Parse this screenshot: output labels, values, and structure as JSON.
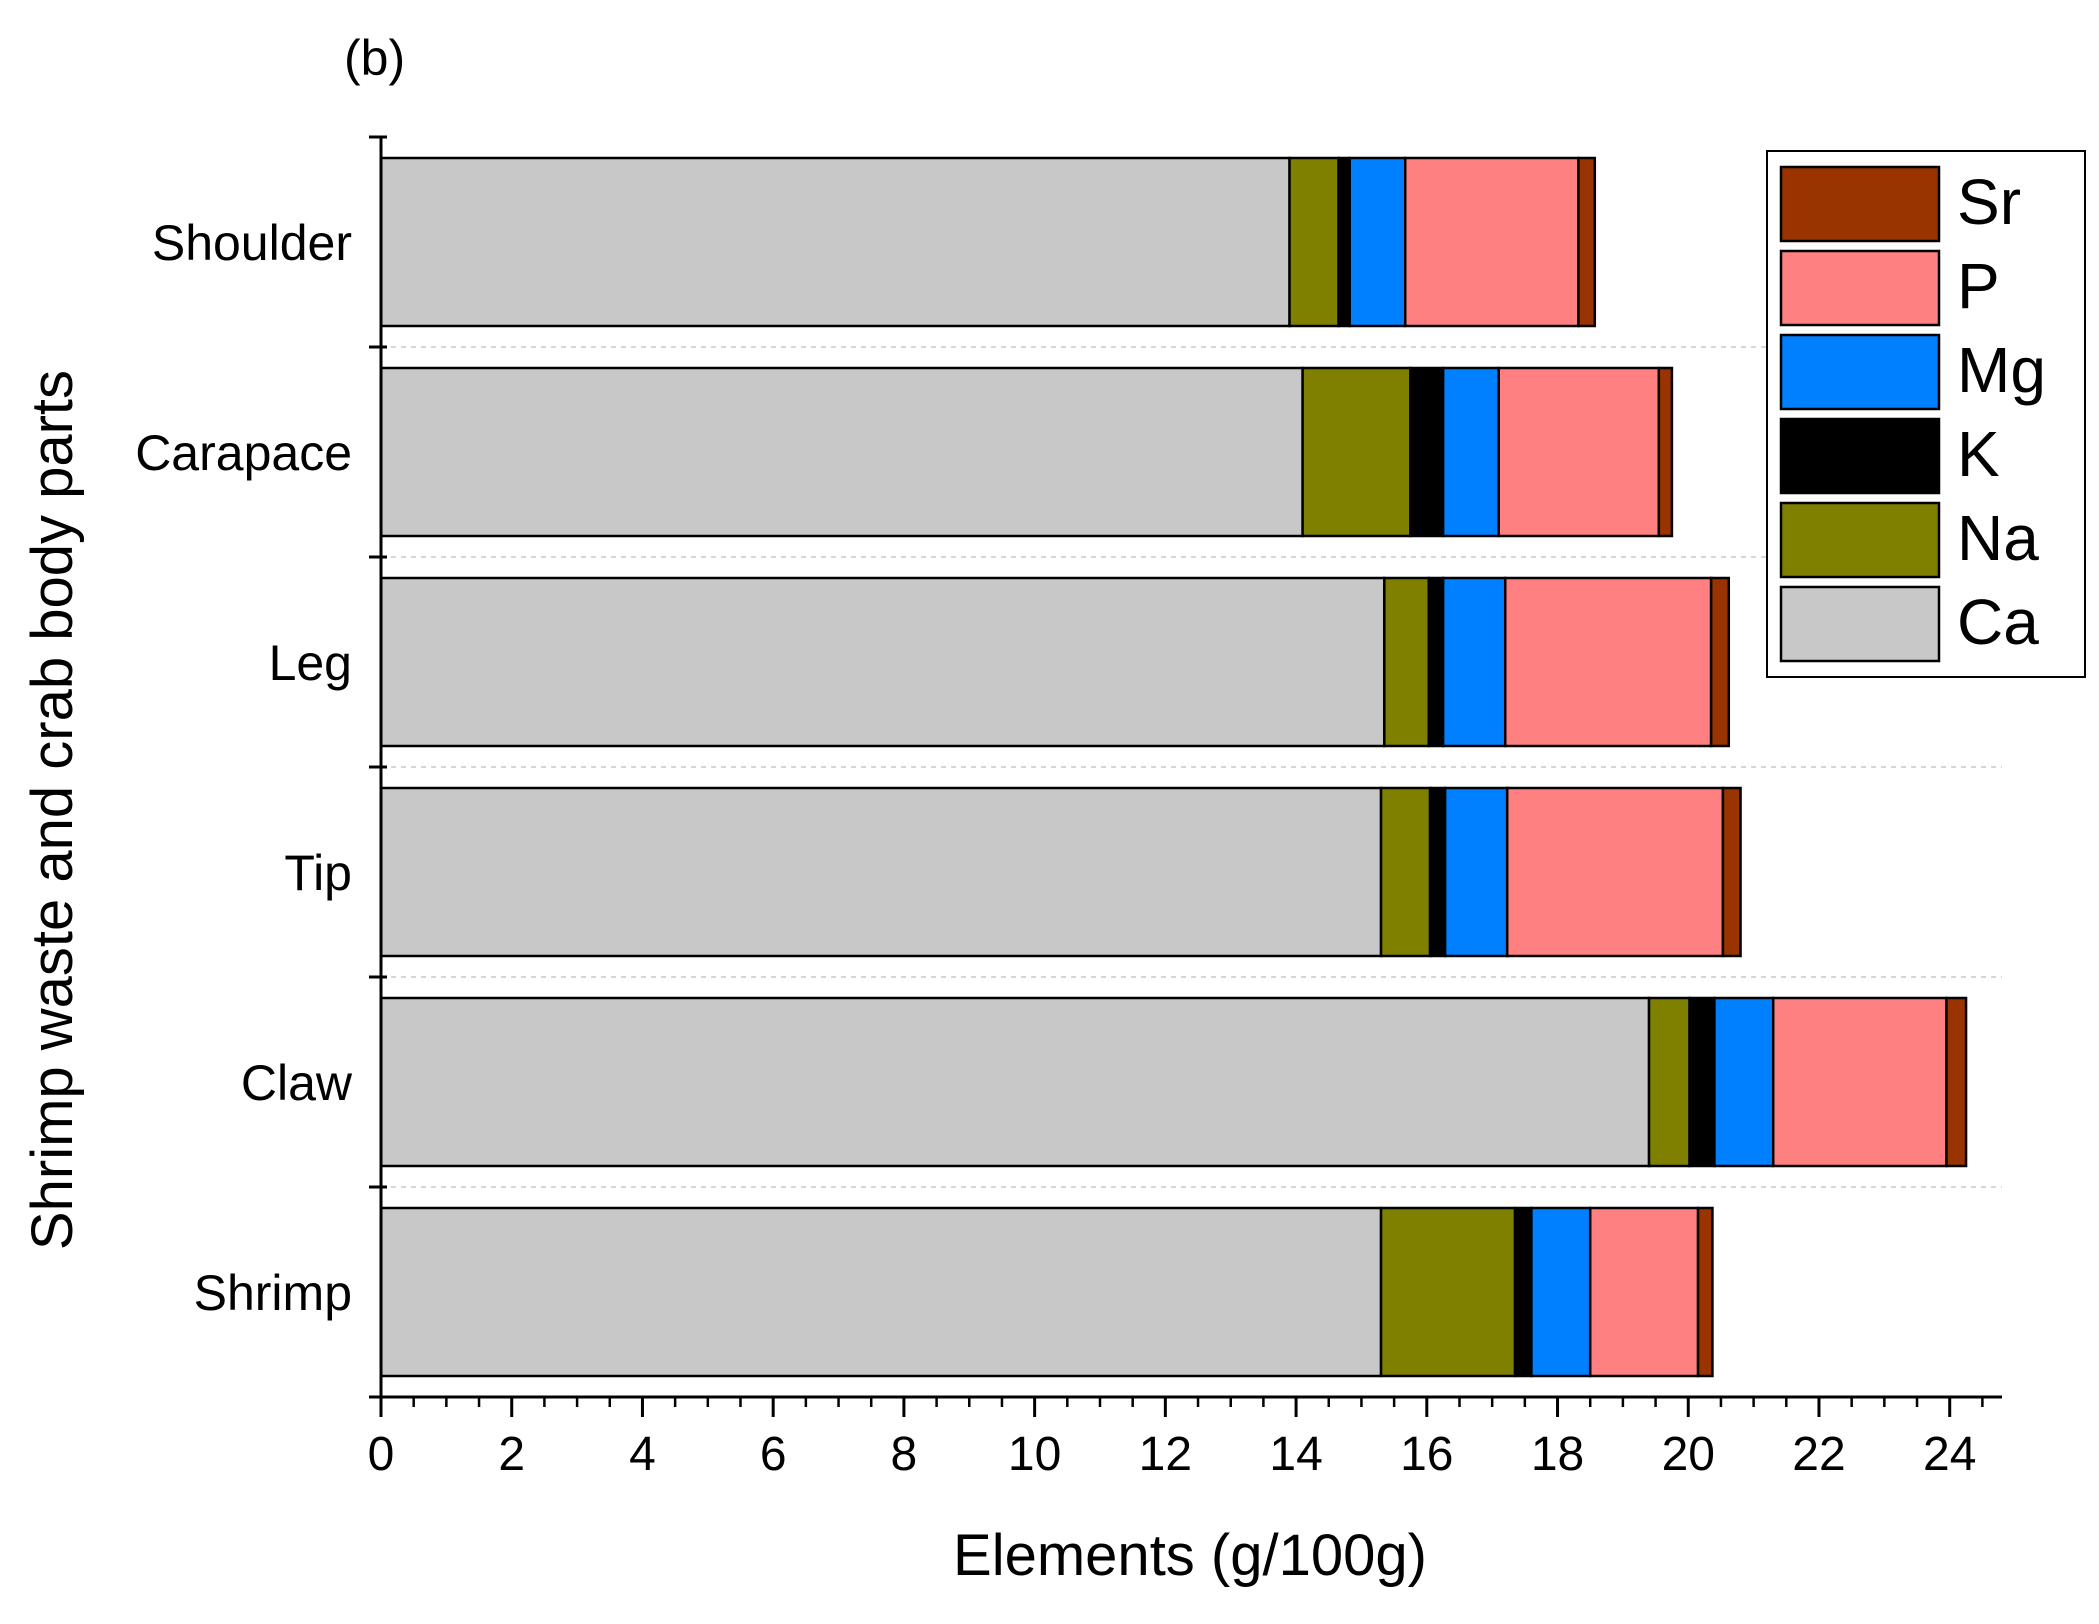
{
  "panel_label": "(b)",
  "chart_data": {
    "type": "bar",
    "orientation": "horizontal",
    "stacked": true,
    "categories": [
      "Shoulder",
      "Carapace",
      "Leg",
      "Tip",
      "Claw",
      "Shrimp"
    ],
    "series": [
      {
        "name": "Ca",
        "color": "#c8c8c8",
        "values": [
          13.9,
          14.1,
          15.35,
          15.3,
          19.4,
          15.3
        ]
      },
      {
        "name": "Na",
        "color": "#808000",
        "values": [
          0.75,
          1.65,
          0.68,
          0.75,
          0.62,
          2.05
        ]
      },
      {
        "name": "K",
        "color": "#000000",
        "values": [
          0.17,
          0.5,
          0.22,
          0.23,
          0.38,
          0.25
        ]
      },
      {
        "name": "Mg",
        "color": "#0080ff",
        "values": [
          0.85,
          0.85,
          0.95,
          0.95,
          0.9,
          0.9
        ]
      },
      {
        "name": "P",
        "color": "#ff8080",
        "values": [
          2.65,
          2.45,
          3.15,
          3.3,
          2.65,
          1.65
        ]
      },
      {
        "name": "Sr",
        "color": "#993300",
        "values": [
          0.25,
          0.2,
          0.27,
          0.27,
          0.3,
          0.22
        ]
      }
    ],
    "legend_order": [
      "Sr",
      "P",
      "Mg",
      "K",
      "Na",
      "Ca"
    ],
    "legend_position": "top-right",
    "xlabel": "Elements (g/100g)",
    "ylabel": "Shrimp waste and crab body parts",
    "xlim": [
      0,
      24.8
    ],
    "x_major_ticks": [
      0,
      2,
      4,
      6,
      8,
      10,
      12,
      14,
      16,
      18,
      20,
      22,
      24
    ],
    "x_minor_step": 0.5,
    "grid": "dashed separators between category bands"
  }
}
